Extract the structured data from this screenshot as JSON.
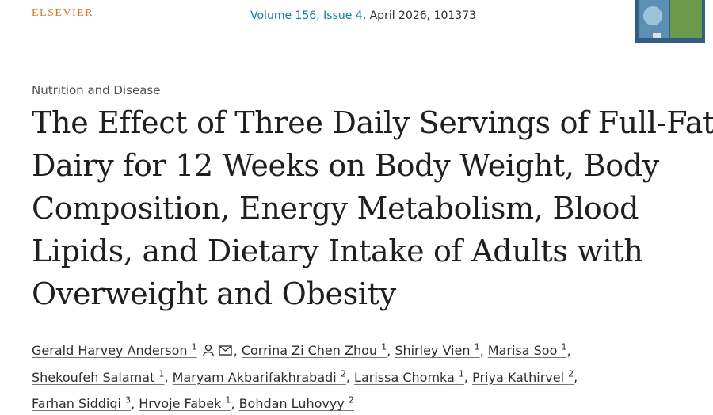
{
  "header": {
    "publisher": "ELSEVIER",
    "volume_issue": "Volume 156, Issue 4",
    "issue_details": ", April 2026, 101373"
  },
  "article": {
    "section": "Nutrition and Disease",
    "title_lines": [
      "The Effect of Three Daily Servings of Full-Fat",
      "Dairy for 12 Weeks on Body Weight, Body",
      "Composition, Energy Metabolism, Blood",
      "Lipids, and Dietary Intake of Adults with",
      "Overweight and Obesity"
    ],
    "author_lines": [
      [
        {
          "name": "Gerald Harvey Anderson",
          "affiliation": "1",
          "delimiter": ","
        },
        {
          "name": "Corrina Zi Chen Zhou",
          "affiliation": "1",
          "delimiter": ","
        },
        {
          "name": "Shirley Vien",
          "affiliation": "1",
          "delimiter": ","
        },
        {
          "name": "Marisa Soo",
          "affiliation": "1",
          "delimiter": ","
        }
      ],
      [
        {
          "name": "Shekoufeh Salamat",
          "affiliation": "1",
          "delimiter": ","
        },
        {
          "name": "Maryam Akbarifakhrabadi",
          "affiliation": "2",
          "delimiter": ","
        },
        {
          "name": "Larissa Chomka",
          "affiliation": "1",
          "delimiter": ","
        },
        {
          "name": "Priya Kathirvel",
          "affiliation": "2",
          "delimiter": ","
        }
      ],
      [
        {
          "name": "Farhan Siddiqi",
          "affiliation": "3",
          "delimiter": ","
        },
        {
          "name": "Hrvoje Fabek",
          "affiliation": "1",
          "delimiter": ","
        },
        {
          "name": "Bohdan Luhovyy",
          "affiliation": "2"
        }
      ]
    ]
  }
}
